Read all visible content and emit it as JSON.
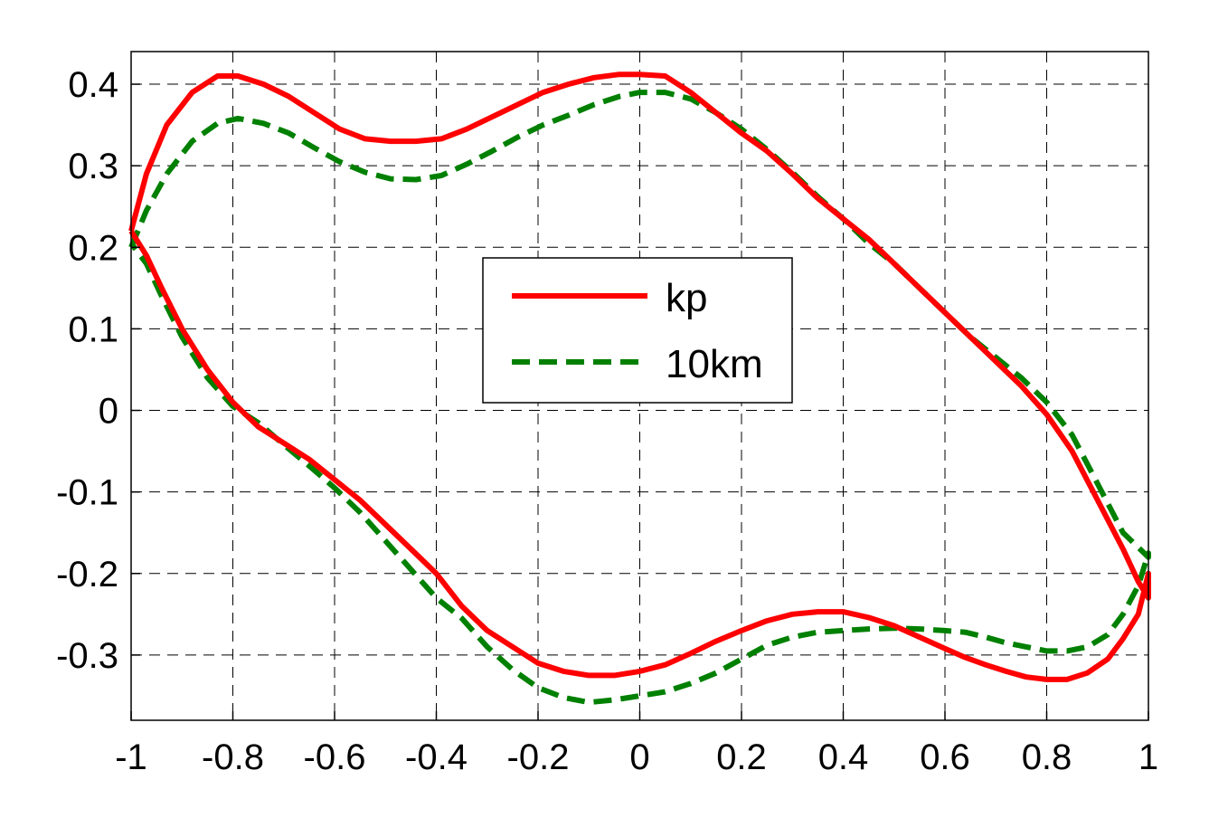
{
  "chart_data": {
    "type": "line",
    "title": "",
    "xlabel": "",
    "ylabel": "",
    "xlim": [
      -1,
      1
    ],
    "ylim": [
      -0.38,
      0.44
    ],
    "grid": true,
    "legend_position": "center",
    "x_ticks": [
      -1,
      -0.8,
      -0.6,
      -0.4,
      -0.2,
      0,
      0.2,
      0.4,
      0.6,
      0.8,
      1
    ],
    "x_tick_labels": [
      "-1",
      "-0.8",
      "-0.6",
      "-0.4",
      "-0.2",
      "0",
      "0.2",
      "0.4",
      "0.6",
      "0.8",
      "1"
    ],
    "y_ticks": [
      -0.3,
      -0.2,
      -0.1,
      0,
      0.1,
      0.2,
      0.3,
      0.4
    ],
    "y_tick_labels": [
      "-0.3",
      "-0.2",
      "-0.1",
      "0",
      "0.1",
      "0.2",
      "0.3",
      "0.4"
    ],
    "series": [
      {
        "name": "kp",
        "color": "#ff0000",
        "style": "solid",
        "points": [
          [
            -1.0,
            0.22
          ],
          [
            -0.97,
            0.29
          ],
          [
            -0.93,
            0.35
          ],
          [
            -0.88,
            0.39
          ],
          [
            -0.83,
            0.41
          ],
          [
            -0.79,
            0.41
          ],
          [
            -0.74,
            0.4
          ],
          [
            -0.69,
            0.385
          ],
          [
            -0.64,
            0.365
          ],
          [
            -0.59,
            0.345
          ],
          [
            -0.54,
            0.333
          ],
          [
            -0.49,
            0.33
          ],
          [
            -0.44,
            0.33
          ],
          [
            -0.39,
            0.333
          ],
          [
            -0.34,
            0.345
          ],
          [
            -0.29,
            0.36
          ],
          [
            -0.24,
            0.375
          ],
          [
            -0.19,
            0.39
          ],
          [
            -0.14,
            0.4
          ],
          [
            -0.09,
            0.408
          ],
          [
            -0.04,
            0.412
          ],
          [
            0.0,
            0.412
          ],
          [
            0.05,
            0.41
          ],
          [
            0.1,
            0.39
          ],
          [
            0.15,
            0.365
          ],
          [
            0.2,
            0.34
          ],
          [
            0.25,
            0.318
          ],
          [
            0.3,
            0.29
          ],
          [
            0.35,
            0.26
          ],
          [
            0.4,
            0.235
          ],
          [
            0.45,
            0.21
          ],
          [
            0.5,
            0.18
          ],
          [
            0.55,
            0.15
          ],
          [
            0.6,
            0.12
          ],
          [
            0.65,
            0.09
          ],
          [
            0.7,
            0.06
          ],
          [
            0.75,
            0.03
          ],
          [
            0.8,
            -0.005
          ],
          [
            0.85,
            -0.05
          ],
          [
            0.9,
            -0.11
          ],
          [
            0.95,
            -0.17
          ],
          [
            0.98,
            -0.21
          ],
          [
            1.0,
            -0.23
          ],
          [
            1.0,
            -0.2
          ],
          [
            0.98,
            -0.25
          ],
          [
            0.95,
            -0.28
          ],
          [
            0.92,
            -0.305
          ],
          [
            0.88,
            -0.322
          ],
          [
            0.84,
            -0.33
          ],
          [
            0.8,
            -0.33
          ],
          [
            0.76,
            -0.327
          ],
          [
            0.72,
            -0.32
          ],
          [
            0.68,
            -0.312
          ],
          [
            0.64,
            -0.303
          ],
          [
            0.6,
            -0.292
          ],
          [
            0.55,
            -0.278
          ],
          [
            0.5,
            -0.264
          ],
          [
            0.45,
            -0.254
          ],
          [
            0.4,
            -0.247
          ],
          [
            0.35,
            -0.247
          ],
          [
            0.3,
            -0.25
          ],
          [
            0.25,
            -0.258
          ],
          [
            0.2,
            -0.27
          ],
          [
            0.15,
            -0.283
          ],
          [
            0.1,
            -0.298
          ],
          [
            0.05,
            -0.312
          ],
          [
            0.0,
            -0.32
          ],
          [
            -0.05,
            -0.325
          ],
          [
            -0.1,
            -0.325
          ],
          [
            -0.15,
            -0.32
          ],
          [
            -0.2,
            -0.31
          ],
          [
            -0.25,
            -0.29
          ],
          [
            -0.3,
            -0.27
          ],
          [
            -0.35,
            -0.24
          ],
          [
            -0.4,
            -0.2
          ],
          [
            -0.45,
            -0.17
          ],
          [
            -0.5,
            -0.14
          ],
          [
            -0.55,
            -0.11
          ],
          [
            -0.6,
            -0.085
          ],
          [
            -0.65,
            -0.06
          ],
          [
            -0.7,
            -0.04
          ],
          [
            -0.75,
            -0.02
          ],
          [
            -0.8,
            0.01
          ],
          [
            -0.85,
            0.05
          ],
          [
            -0.9,
            0.1
          ],
          [
            -0.94,
            0.15
          ],
          [
            -0.97,
            0.19
          ],
          [
            -1.0,
            0.22
          ]
        ]
      },
      {
        "name": "10km",
        "color": "#008000",
        "style": "dashed",
        "points": [
          [
            -1.0,
            0.2
          ],
          [
            -0.97,
            0.245
          ],
          [
            -0.93,
            0.29
          ],
          [
            -0.88,
            0.33
          ],
          [
            -0.83,
            0.352
          ],
          [
            -0.79,
            0.358
          ],
          [
            -0.74,
            0.352
          ],
          [
            -0.69,
            0.34
          ],
          [
            -0.64,
            0.322
          ],
          [
            -0.59,
            0.305
          ],
          [
            -0.54,
            0.292
          ],
          [
            -0.49,
            0.284
          ],
          [
            -0.44,
            0.283
          ],
          [
            -0.39,
            0.288
          ],
          [
            -0.34,
            0.302
          ],
          [
            -0.29,
            0.318
          ],
          [
            -0.24,
            0.335
          ],
          [
            -0.19,
            0.35
          ],
          [
            -0.14,
            0.362
          ],
          [
            -0.09,
            0.375
          ],
          [
            -0.04,
            0.385
          ],
          [
            0.0,
            0.39
          ],
          [
            0.05,
            0.39
          ],
          [
            0.1,
            0.382
          ],
          [
            0.15,
            0.365
          ],
          [
            0.2,
            0.345
          ],
          [
            0.25,
            0.32
          ],
          [
            0.3,
            0.292
          ],
          [
            0.35,
            0.262
          ],
          [
            0.4,
            0.235
          ],
          [
            0.45,
            0.205
          ],
          [
            0.5,
            0.18
          ],
          [
            0.55,
            0.15
          ],
          [
            0.6,
            0.12
          ],
          [
            0.65,
            0.09
          ],
          [
            0.7,
            0.065
          ],
          [
            0.75,
            0.04
          ],
          [
            0.8,
            0.01
          ],
          [
            0.85,
            -0.03
          ],
          [
            0.9,
            -0.09
          ],
          [
            0.95,
            -0.15
          ],
          [
            1.0,
            -0.18
          ],
          [
            1.0,
            -0.175
          ],
          [
            0.98,
            -0.215
          ],
          [
            0.95,
            -0.25
          ],
          [
            0.92,
            -0.275
          ],
          [
            0.88,
            -0.29
          ],
          [
            0.84,
            -0.295
          ],
          [
            0.8,
            -0.295
          ],
          [
            0.76,
            -0.29
          ],
          [
            0.72,
            -0.285
          ],
          [
            0.68,
            -0.278
          ],
          [
            0.64,
            -0.272
          ],
          [
            0.6,
            -0.27
          ],
          [
            0.55,
            -0.268
          ],
          [
            0.5,
            -0.267
          ],
          [
            0.45,
            -0.268
          ],
          [
            0.4,
            -0.27
          ],
          [
            0.35,
            -0.272
          ],
          [
            0.3,
            -0.278
          ],
          [
            0.25,
            -0.288
          ],
          [
            0.2,
            -0.305
          ],
          [
            0.15,
            -0.322
          ],
          [
            0.1,
            -0.335
          ],
          [
            0.05,
            -0.345
          ],
          [
            0.0,
            -0.35
          ],
          [
            -0.05,
            -0.355
          ],
          [
            -0.1,
            -0.358
          ],
          [
            -0.15,
            -0.352
          ],
          [
            -0.2,
            -0.34
          ],
          [
            -0.25,
            -0.318
          ],
          [
            -0.3,
            -0.29
          ],
          [
            -0.35,
            -0.255
          ],
          [
            -0.4,
            -0.23
          ],
          [
            -0.45,
            -0.195
          ],
          [
            -0.5,
            -0.16
          ],
          [
            -0.55,
            -0.125
          ],
          [
            -0.6,
            -0.095
          ],
          [
            -0.65,
            -0.068
          ],
          [
            -0.7,
            -0.042
          ],
          [
            -0.75,
            -0.015
          ],
          [
            -0.8,
            0.005
          ],
          [
            -0.85,
            0.04
          ],
          [
            -0.9,
            0.09
          ],
          [
            -0.94,
            0.14
          ],
          [
            -0.97,
            0.18
          ],
          [
            -1.0,
            0.205
          ]
        ]
      }
    ]
  }
}
